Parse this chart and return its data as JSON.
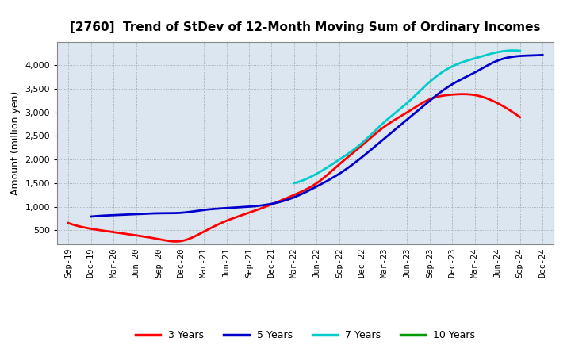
{
  "title": "[2760]  Trend of StDev of 12-Month Moving Sum of Ordinary Incomes",
  "ylabel": "Amount (million yen)",
  "background_color": "#ffffff",
  "plot_bg_color": "#dce6f0",
  "grid_color": "#999999",
  "x_labels": [
    "Sep-19",
    "Dec-19",
    "Mar-20",
    "Jun-20",
    "Sep-20",
    "Dec-20",
    "Mar-21",
    "Jun-21",
    "Sep-21",
    "Dec-21",
    "Mar-22",
    "Jun-22",
    "Sep-22",
    "Dec-22",
    "Mar-23",
    "Jun-23",
    "Sep-23",
    "Dec-23",
    "Mar-24",
    "Jun-24",
    "Sep-24",
    "Dec-24"
  ],
  "series": {
    "3 Years": {
      "color": "#ff0000",
      "values": [
        650,
        530,
        460,
        390,
        310,
        270,
        470,
        700,
        870,
        1050,
        1250,
        1500,
        1900,
        2300,
        2700,
        3000,
        3280,
        3380,
        3370,
        3200,
        2900,
        null
      ]
    },
    "5 Years": {
      "color": "#0000cc",
      "values": [
        null,
        790,
        820,
        840,
        860,
        870,
        930,
        970,
        1000,
        1060,
        1200,
        1430,
        1700,
        2050,
        2450,
        2850,
        3250,
        3600,
        3850,
        4100,
        4200,
        4220
      ]
    },
    "7 Years": {
      "color": "#00cccc",
      "values": [
        null,
        null,
        null,
        null,
        null,
        null,
        null,
        null,
        null,
        null,
        1500,
        1700,
        2000,
        2350,
        2800,
        3200,
        3650,
        3980,
        4150,
        4280,
        4310,
        null
      ]
    },
    "10 Years": {
      "color": "#009900",
      "values": [
        null,
        null,
        null,
        null,
        null,
        null,
        null,
        null,
        null,
        null,
        null,
        null,
        null,
        null,
        null,
        null,
        null,
        null,
        null,
        null,
        null,
        null
      ]
    }
  },
  "ylim": [
    200,
    4500
  ],
  "yticks": [
    500,
    1000,
    1500,
    2000,
    2500,
    3000,
    3500,
    4000
  ],
  "legend_labels": [
    "3 Years",
    "5 Years",
    "7 Years",
    "10 Years"
  ],
  "legend_colors": [
    "#ff0000",
    "#0000cc",
    "#00cccc",
    "#009900"
  ],
  "title_fontsize": 11,
  "ylabel_fontsize": 9,
  "tick_fontsize": 8,
  "xtick_fontsize": 7.5
}
